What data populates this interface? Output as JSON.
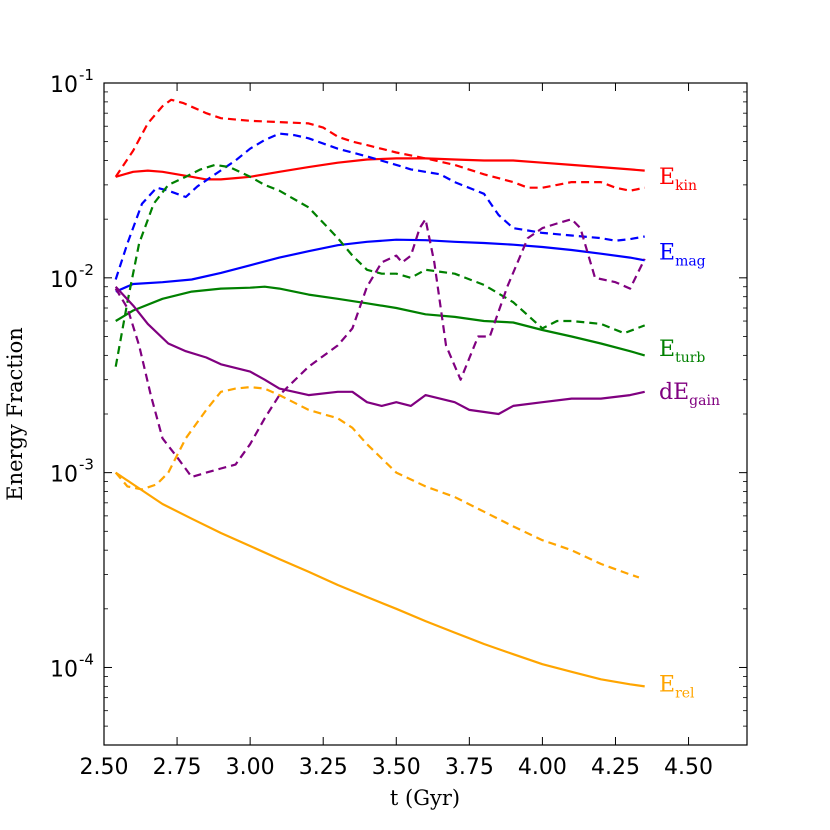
{
  "chart_data": {
    "type": "line",
    "title": "",
    "xlabel": "t (Gyr)",
    "ylabel": "Energy Fraction",
    "yscale": "log",
    "xlim": [
      2.5,
      4.7
    ],
    "ylim": [
      4e-05,
      0.1
    ],
    "xticks": [
      "2.50",
      "2.75",
      "3.00",
      "3.25",
      "3.50",
      "3.75",
      "4.00",
      "4.25",
      "4.50"
    ],
    "xtick_values": [
      2.5,
      2.75,
      3.0,
      3.25,
      3.5,
      3.75,
      4.0,
      4.25,
      4.5
    ],
    "yticks": [
      {
        "value": 0.0001,
        "base": "10",
        "exp": "-4"
      },
      {
        "value": 0.001,
        "base": "10",
        "exp": "-3"
      },
      {
        "value": 0.01,
        "base": "10",
        "exp": "-2"
      },
      {
        "value": 0.1,
        "base": "10",
        "exp": "-1"
      }
    ],
    "series": [
      {
        "name": "E_kin",
        "label_main": "E",
        "label_sub": "kin",
        "color": "#ff0000",
        "label_y": 0.033,
        "solid": [
          [
            2.54,
            0.033
          ],
          [
            2.6,
            0.035
          ],
          [
            2.65,
            0.0355
          ],
          [
            2.7,
            0.035
          ],
          [
            2.75,
            0.034
          ],
          [
            2.8,
            0.033
          ],
          [
            2.85,
            0.032
          ],
          [
            2.9,
            0.032
          ],
          [
            2.95,
            0.0325
          ],
          [
            3.0,
            0.033
          ],
          [
            3.1,
            0.035
          ],
          [
            3.2,
            0.037
          ],
          [
            3.3,
            0.039
          ],
          [
            3.4,
            0.0405
          ],
          [
            3.5,
            0.041
          ],
          [
            3.6,
            0.041
          ],
          [
            3.7,
            0.0405
          ],
          [
            3.8,
            0.04
          ],
          [
            3.9,
            0.04
          ],
          [
            4.0,
            0.039
          ],
          [
            4.1,
            0.038
          ],
          [
            4.2,
            0.037
          ],
          [
            4.3,
            0.036
          ],
          [
            4.35,
            0.0355
          ]
        ],
        "dashed": [
          [
            2.54,
            0.033
          ],
          [
            2.6,
            0.045
          ],
          [
            2.65,
            0.062
          ],
          [
            2.7,
            0.076
          ],
          [
            2.73,
            0.082
          ],
          [
            2.77,
            0.079
          ],
          [
            2.85,
            0.07
          ],
          [
            2.9,
            0.066
          ],
          [
            3.0,
            0.064
          ],
          [
            3.1,
            0.063
          ],
          [
            3.2,
            0.062
          ],
          [
            3.25,
            0.059
          ],
          [
            3.3,
            0.053
          ],
          [
            3.35,
            0.05
          ],
          [
            3.4,
            0.048
          ],
          [
            3.5,
            0.044
          ],
          [
            3.6,
            0.041
          ],
          [
            3.7,
            0.038
          ],
          [
            3.8,
            0.034
          ],
          [
            3.9,
            0.031
          ],
          [
            3.95,
            0.029
          ],
          [
            4.0,
            0.029
          ],
          [
            4.05,
            0.03
          ],
          [
            4.1,
            0.031
          ],
          [
            4.2,
            0.031
          ],
          [
            4.25,
            0.029
          ],
          [
            4.3,
            0.028
          ],
          [
            4.35,
            0.029
          ]
        ]
      },
      {
        "name": "E_mag",
        "label_main": "E",
        "label_sub": "mag",
        "color": "#0000ff",
        "label_y": 0.0135,
        "solid": [
          [
            2.54,
            0.0085
          ],
          [
            2.6,
            0.0093
          ],
          [
            2.7,
            0.0095
          ],
          [
            2.8,
            0.0098
          ],
          [
            2.9,
            0.0106
          ],
          [
            3.0,
            0.0116
          ],
          [
            3.1,
            0.0127
          ],
          [
            3.2,
            0.0137
          ],
          [
            3.3,
            0.0147
          ],
          [
            3.4,
            0.0153
          ],
          [
            3.5,
            0.0157
          ],
          [
            3.6,
            0.0156
          ],
          [
            3.7,
            0.0153
          ],
          [
            3.8,
            0.0151
          ],
          [
            3.9,
            0.0148
          ],
          [
            4.0,
            0.0144
          ],
          [
            4.1,
            0.0139
          ],
          [
            4.2,
            0.0133
          ],
          [
            4.3,
            0.0127
          ],
          [
            4.35,
            0.0123
          ]
        ],
        "dashed": [
          [
            2.54,
            0.0098
          ],
          [
            2.58,
            0.015
          ],
          [
            2.63,
            0.024
          ],
          [
            2.68,
            0.029
          ],
          [
            2.72,
            0.028
          ],
          [
            2.78,
            0.026
          ],
          [
            2.82,
            0.0295
          ],
          [
            2.88,
            0.034
          ],
          [
            2.95,
            0.04
          ],
          [
            3.0,
            0.046
          ],
          [
            3.05,
            0.051
          ],
          [
            3.1,
            0.055
          ],
          [
            3.15,
            0.054
          ],
          [
            3.2,
            0.052
          ],
          [
            3.3,
            0.046
          ],
          [
            3.4,
            0.042
          ],
          [
            3.5,
            0.038
          ],
          [
            3.55,
            0.036
          ],
          [
            3.65,
            0.034
          ],
          [
            3.7,
            0.031
          ],
          [
            3.8,
            0.027
          ],
          [
            3.85,
            0.021
          ],
          [
            3.9,
            0.018
          ],
          [
            4.0,
            0.017
          ],
          [
            4.1,
            0.0165
          ],
          [
            4.2,
            0.016
          ],
          [
            4.25,
            0.0155
          ],
          [
            4.3,
            0.0158
          ],
          [
            4.35,
            0.0163
          ]
        ]
      },
      {
        "name": "E_turb",
        "label_main": "E",
        "label_sub": "turb",
        "color": "#008000",
        "label_y": 0.0043,
        "solid": [
          [
            2.54,
            0.006
          ],
          [
            2.6,
            0.0068
          ],
          [
            2.7,
            0.0078
          ],
          [
            2.8,
            0.0085
          ],
          [
            2.9,
            0.0088
          ],
          [
            3.0,
            0.0089
          ],
          [
            3.05,
            0.009
          ],
          [
            3.1,
            0.0088
          ],
          [
            3.2,
            0.0082
          ],
          [
            3.3,
            0.0078
          ],
          [
            3.4,
            0.0074
          ],
          [
            3.5,
            0.007
          ],
          [
            3.6,
            0.0065
          ],
          [
            3.7,
            0.0063
          ],
          [
            3.8,
            0.006
          ],
          [
            3.9,
            0.0059
          ],
          [
            4.0,
            0.0054
          ],
          [
            4.1,
            0.005
          ],
          [
            4.2,
            0.0046
          ],
          [
            4.3,
            0.0042
          ],
          [
            4.35,
            0.004
          ]
        ],
        "dashed": [
          [
            2.54,
            0.0035
          ],
          [
            2.58,
            0.0075
          ],
          [
            2.62,
            0.015
          ],
          [
            2.67,
            0.024
          ],
          [
            2.72,
            0.03
          ],
          [
            2.78,
            0.033
          ],
          [
            2.83,
            0.036
          ],
          [
            2.88,
            0.038
          ],
          [
            2.93,
            0.037
          ],
          [
            3.0,
            0.033
          ],
          [
            3.05,
            0.03
          ],
          [
            3.1,
            0.028
          ],
          [
            3.2,
            0.023
          ],
          [
            3.3,
            0.016
          ],
          [
            3.35,
            0.013
          ],
          [
            3.4,
            0.011
          ],
          [
            3.45,
            0.0105
          ],
          [
            3.5,
            0.0105
          ],
          [
            3.55,
            0.01
          ],
          [
            3.6,
            0.011
          ],
          [
            3.7,
            0.0105
          ],
          [
            3.8,
            0.0092
          ],
          [
            3.9,
            0.0075
          ],
          [
            4.0,
            0.0055
          ],
          [
            4.05,
            0.006
          ],
          [
            4.1,
            0.006
          ],
          [
            4.2,
            0.0058
          ],
          [
            4.28,
            0.0052
          ],
          [
            4.35,
            0.0057
          ]
        ]
      },
      {
        "name": "dE_gain",
        "label_main": "dE",
        "label_sub": "gain",
        "color": "#800080",
        "label_y": 0.0026,
        "solid": [
          [
            2.54,
            0.009
          ],
          [
            2.6,
            0.0072
          ],
          [
            2.65,
            0.0058
          ],
          [
            2.72,
            0.0046
          ],
          [
            2.78,
            0.0042
          ],
          [
            2.85,
            0.0039
          ],
          [
            2.9,
            0.0036
          ],
          [
            3.0,
            0.0033
          ],
          [
            3.05,
            0.003
          ],
          [
            3.1,
            0.0027
          ],
          [
            3.2,
            0.0025
          ],
          [
            3.3,
            0.0026
          ],
          [
            3.35,
            0.0026
          ],
          [
            3.4,
            0.0023
          ],
          [
            3.45,
            0.0022
          ],
          [
            3.5,
            0.0023
          ],
          [
            3.55,
            0.0022
          ],
          [
            3.6,
            0.0025
          ],
          [
            3.7,
            0.0023
          ],
          [
            3.75,
            0.0021
          ],
          [
            3.85,
            0.002
          ],
          [
            3.9,
            0.0022
          ],
          [
            4.0,
            0.0023
          ],
          [
            4.1,
            0.0024
          ],
          [
            4.2,
            0.0024
          ],
          [
            4.3,
            0.0025
          ],
          [
            4.35,
            0.0026
          ]
        ],
        "dashed": [
          [
            2.54,
            0.0088
          ],
          [
            2.58,
            0.007
          ],
          [
            2.62,
            0.0045
          ],
          [
            2.66,
            0.0025
          ],
          [
            2.7,
            0.0015
          ],
          [
            2.75,
            0.0012
          ],
          [
            2.8,
            0.00095
          ],
          [
            2.85,
            0.001
          ],
          [
            2.9,
            0.00105
          ],
          [
            2.95,
            0.0011
          ],
          [
            3.0,
            0.0014
          ],
          [
            3.05,
            0.0019
          ],
          [
            3.1,
            0.0025
          ],
          [
            3.2,
            0.0035
          ],
          [
            3.3,
            0.0045
          ],
          [
            3.35,
            0.0055
          ],
          [
            3.4,
            0.009
          ],
          [
            3.45,
            0.012
          ],
          [
            3.5,
            0.013
          ],
          [
            3.52,
            0.012
          ],
          [
            3.55,
            0.013
          ],
          [
            3.58,
            0.018
          ],
          [
            3.6,
            0.02
          ],
          [
            3.63,
            0.012
          ],
          [
            3.67,
            0.0045
          ],
          [
            3.72,
            0.003
          ],
          [
            3.78,
            0.005
          ],
          [
            3.82,
            0.005
          ],
          [
            3.88,
            0.009
          ],
          [
            3.95,
            0.016
          ],
          [
            4.0,
            0.018
          ],
          [
            4.05,
            0.019
          ],
          [
            4.1,
            0.02
          ],
          [
            4.13,
            0.018
          ],
          [
            4.18,
            0.01
          ],
          [
            4.25,
            0.0095
          ],
          [
            4.3,
            0.0088
          ],
          [
            4.35,
            0.0125
          ]
        ]
      },
      {
        "name": "E_rel",
        "label_main": "E",
        "label_sub": "rel",
        "color": "#ffa500",
        "label_y": 8.2e-05,
        "solid": [
          [
            2.54,
            0.001
          ],
          [
            2.6,
            0.00087
          ],
          [
            2.7,
            0.00069
          ],
          [
            2.8,
            0.00058
          ],
          [
            2.9,
            0.00049
          ],
          [
            3.0,
            0.00042
          ],
          [
            3.1,
            0.00036
          ],
          [
            3.2,
            0.00031
          ],
          [
            3.3,
            0.000265
          ],
          [
            3.4,
            0.00023
          ],
          [
            3.5,
            0.0002
          ],
          [
            3.6,
            0.000173
          ],
          [
            3.7,
            0.000151
          ],
          [
            3.8,
            0.000132
          ],
          [
            3.9,
            0.000117
          ],
          [
            4.0,
            0.000104
          ],
          [
            4.1,
            9.5e-05
          ],
          [
            4.2,
            8.7e-05
          ],
          [
            4.3,
            8.2e-05
          ],
          [
            4.35,
            8e-05
          ]
        ],
        "dashed": [
          [
            2.54,
            0.001
          ],
          [
            2.58,
            0.00085
          ],
          [
            2.63,
            0.00082
          ],
          [
            2.68,
            0.00087
          ],
          [
            2.72,
            0.001
          ],
          [
            2.78,
            0.0015
          ],
          [
            2.85,
            0.0021
          ],
          [
            2.9,
            0.0026
          ],
          [
            2.95,
            0.0027
          ],
          [
            3.0,
            0.00275
          ],
          [
            3.05,
            0.0027
          ],
          [
            3.1,
            0.0025
          ],
          [
            3.2,
            0.0021
          ],
          [
            3.3,
            0.0019
          ],
          [
            3.35,
            0.0017
          ],
          [
            3.4,
            0.0014
          ],
          [
            3.5,
            0.001
          ],
          [
            3.6,
            0.00085
          ],
          [
            3.7,
            0.00075
          ],
          [
            3.8,
            0.00063
          ],
          [
            3.9,
            0.00053
          ],
          [
            4.0,
            0.00045
          ],
          [
            4.1,
            0.0004
          ],
          [
            4.2,
            0.00034
          ],
          [
            4.3,
            0.0003
          ],
          [
            4.33,
            0.00029
          ]
        ]
      }
    ]
  }
}
